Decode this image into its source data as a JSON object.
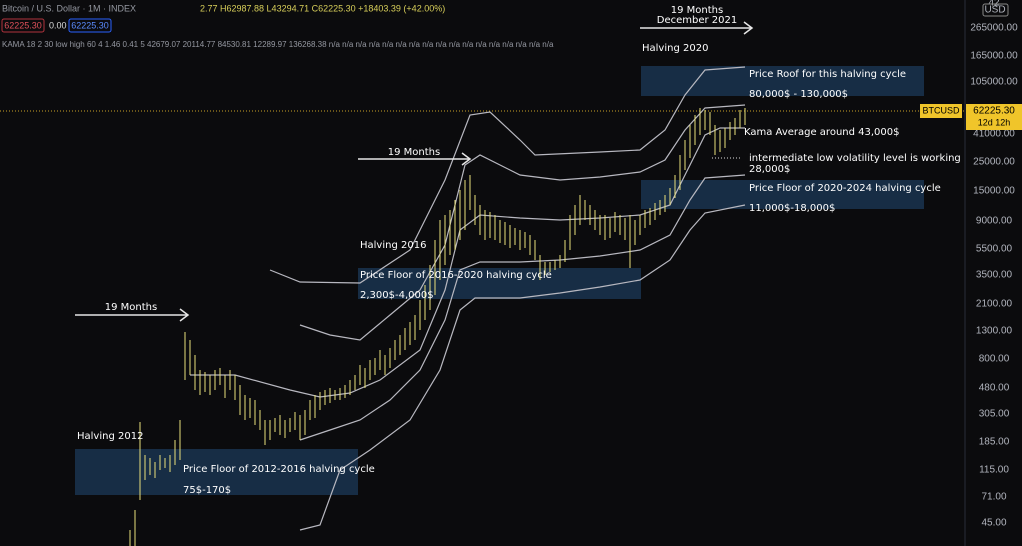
{
  "header": {
    "symbol": "Bitcoin / U.S. Dollar · 1M · INDEX",
    "ohlc": "2.77  H62987.88  L43294.71  C62225.30  +18403.39 (+42.00%)",
    "badges": [
      "62225.30",
      "0.00",
      "62225.30"
    ],
    "indicator": "KAMA 18 2 30 low high 60 4 1.46 0.41 5   42679.07  20114.77  84530.81  12289.97  136268.38  n/a n/a n/a n/a n/a n/a n/a n/a n/a n/a n/a n/a n/a n/a n/a n/a n/a"
  },
  "annotations": {
    "months_2012": "19 Months",
    "months_2016": "19 Months",
    "months_2020": "19 Months",
    "december_2021": "December 2021",
    "halving_2020": "Halving 2020",
    "halving_2016": "Halving 2016",
    "halving_2012": "Halving 2012",
    "roof_title": "Price Roof for this halving cycle",
    "roof_range": "80,000$ - 130,000$",
    "kama_note": "Kama Average around 43,000$",
    "volatility_note": "intermediate low volatility level is working",
    "volatility_level": "28,000$",
    "floor_2020_title": "Price Floor of 2020-2024 halving cycle",
    "floor_2020_range": "11,000$-18,000$",
    "floor_2016_title": "Price Floor of 2016-2020 halving cycle",
    "floor_2016_range": "2,300$-4,000$",
    "floor_2012_title": "Price Floor of 2012-2016 halving cycle",
    "floor_2012_range": "75$-170$"
  },
  "price_axis": {
    "top": "42",
    "currency": "USD",
    "ticks": [
      "265000.00",
      "165000.00",
      "105000.00",
      "41000.00",
      "25000.00",
      "15000.00",
      "9000.00",
      "5500.00",
      "3500.00",
      "2100.00",
      "1300.00",
      "800.00",
      "480.00",
      "305.00",
      "185.00",
      "115.00",
      "71.00",
      "45.00"
    ],
    "symbol_tag": "BTCUSD",
    "last_price": "62225.30",
    "countdown": "12d 12h"
  }
}
